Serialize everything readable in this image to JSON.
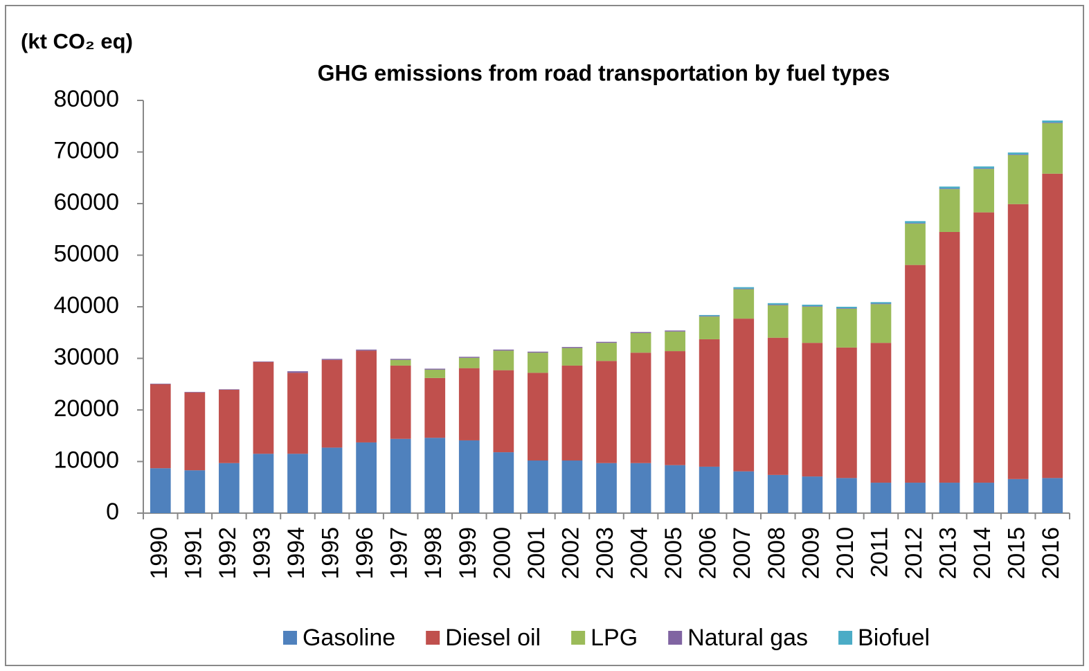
{
  "chart_data": {
    "type": "stacked_bar",
    "title": "GHG emissions from road transportation by fuel types",
    "y_label": "(kt CO₂ eq)",
    "categories": [
      "1990",
      "1991",
      "1992",
      "1993",
      "1994",
      "1995",
      "1996",
      "1997",
      "1998",
      "1999",
      "2000",
      "2001",
      "2002",
      "2003",
      "2004",
      "2005",
      "2006",
      "2007",
      "2008",
      "2009",
      "2010",
      "2011",
      "2012",
      "2013",
      "2014",
      "2015",
      "2016"
    ],
    "series": [
      {
        "name": "Gasoline",
        "color": "#4f81bd",
        "values": [
          8700.0,
          8300.0,
          9700.0,
          11500.0,
          11500.0,
          12700.0,
          13700.0,
          14400.0,
          14600.0,
          14100.0,
          11800.0,
          10200.0,
          10200.0,
          9700.0,
          9700.0,
          9300.0,
          9000.0,
          8100.0,
          7400.0,
          7100.0,
          6800.0,
          5900.0,
          5900.0,
          5900.0,
          5900.0,
          6600.0,
          6800.0
        ]
      },
      {
        "name": "Diesel oil",
        "color": "#c0504d",
        "values": [
          16300,
          15100,
          14200,
          17800,
          15700,
          17000,
          17800,
          14200,
          11600,
          14000,
          15900,
          17000,
          18400,
          19800,
          21400,
          22100,
          24700,
          29600,
          26600,
          25900,
          25300,
          27100,
          42200,
          48600,
          52400,
          53300,
          59000
        ]
      },
      {
        "name": "LPG",
        "color": "#9bbb59",
        "values": [
          0,
          0,
          0,
          0,
          0,
          0,
          0,
          1100,
          1600,
          2000,
          3800,
          3900,
          3400,
          3500,
          3800,
          3800,
          4400,
          5700,
          6300,
          7000,
          7500,
          7500,
          8000,
          8300,
          8400,
          9500,
          9800
        ]
      },
      {
        "name": "Natural gas",
        "color": "#8064a2",
        "values": [
          100,
          100,
          100,
          100,
          300,
          200,
          200,
          200,
          200,
          200,
          200,
          200,
          200,
          200,
          200,
          200,
          100,
          100,
          100,
          100,
          100,
          100,
          100,
          100,
          100,
          100,
          100
        ]
      },
      {
        "name": "Biofuel",
        "color": "#4bacc6",
        "values": [
          0,
          0,
          0,
          0,
          0,
          0,
          0,
          0,
          0,
          0,
          0,
          0,
          0,
          0,
          0,
          0,
          200,
          300,
          300,
          300,
          300,
          300,
          400,
          400,
          400,
          400,
          400
        ]
      }
    ],
    "ylim": [
      0,
      80000
    ],
    "yticks": [
      0,
      10000,
      20000,
      30000,
      40000,
      50000,
      60000,
      70000,
      80000
    ],
    "legend": "bottom"
  }
}
